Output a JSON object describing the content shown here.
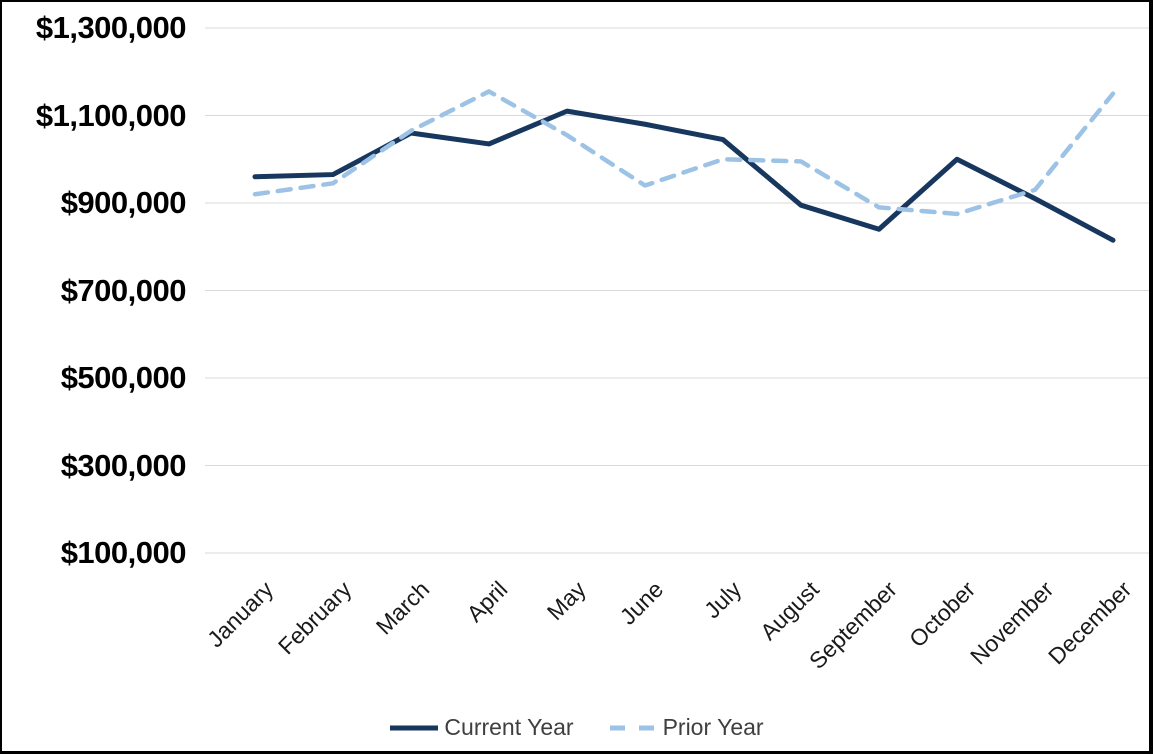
{
  "chart_data": {
    "type": "line",
    "title": "",
    "categories": [
      "January",
      "February",
      "March",
      "April",
      "May",
      "June",
      "July",
      "August",
      "September",
      "October",
      "November",
      "December"
    ],
    "series": [
      {
        "name": "Current Year",
        "style": "solid",
        "color": "#17375e",
        "values": [
          960000,
          965000,
          1060000,
          1035000,
          1110000,
          1080000,
          1045000,
          895000,
          840000,
          1000000,
          910000,
          815000
        ]
      },
      {
        "name": "Prior Year",
        "style": "dashed",
        "color": "#9cc2e5",
        "values": [
          920000,
          945000,
          1065000,
          1155000,
          1055000,
          940000,
          1000000,
          995000,
          890000,
          875000,
          930000,
          1150000
        ]
      }
    ],
    "y_axis": {
      "min": 100000,
      "max": 1300000,
      "tick_step": 200000,
      "tick_values": [
        1300000,
        1100000,
        900000,
        700000,
        500000,
        300000,
        100000
      ],
      "tick_labels": [
        "$1,300,000",
        "$1,100,000",
        "$900,000",
        "$700,000",
        "$500,000",
        "$300,000",
        "$100,000"
      ]
    },
    "x_axis": {
      "label_rotation_deg": -45
    },
    "grid": "horizontal",
    "legend_position": "bottom"
  },
  "colors": {
    "current_year_line": "#17375e",
    "prior_year_line": "#9cc2e5",
    "gridline": "#d9d9d9",
    "y_tick_label": "#000000",
    "x_tick_label": "#1a1a1a",
    "legend_text": "#3f3f3f",
    "frame_border": "#000000",
    "background": "#ffffff"
  }
}
